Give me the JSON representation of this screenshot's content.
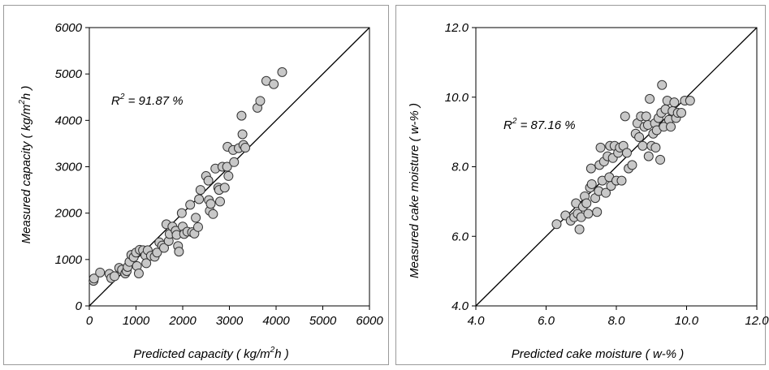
{
  "chart_data": [
    {
      "type": "scatter",
      "xlabel": "Predicted capacity ( kg/m",
      "xlabel_sup": "2",
      "xlabel_tail": "h )",
      "ylabel": "Measured capacity ( kg/m",
      "ylabel_sup": "2",
      "ylabel_tail": "h )",
      "xlim": [
        0,
        6000
      ],
      "ylim": [
        0,
        6000
      ],
      "xticks": [
        "0",
        "1000",
        "2000",
        "3000",
        "4000",
        "5000",
        "6000"
      ],
      "yticks": [
        "0",
        "1000",
        "2000",
        "3000",
        "4000",
        "5000",
        "6000"
      ],
      "grid": false,
      "annotation": {
        "prefix": "R",
        "sup": "2",
        "text": " = 91.87 %"
      },
      "reference_line": [
        [
          0,
          0
        ],
        [
          6000,
          6000
        ]
      ],
      "marker_color": "#c8c8c8",
      "points": [
        [
          90,
          540
        ],
        [
          100,
          590
        ],
        [
          230,
          720
        ],
        [
          430,
          690
        ],
        [
          470,
          600
        ],
        [
          540,
          640
        ],
        [
          640,
          820
        ],
        [
          700,
          780
        ],
        [
          770,
          700
        ],
        [
          800,
          750
        ],
        [
          820,
          840
        ],
        [
          860,
          950
        ],
        [
          900,
          1100
        ],
        [
          950,
          1050
        ],
        [
          1000,
          1150
        ],
        [
          1020,
          860
        ],
        [
          1060,
          700
        ],
        [
          1080,
          1210
        ],
        [
          1150,
          1200
        ],
        [
          1200,
          1090
        ],
        [
          1220,
          920
        ],
        [
          1250,
          1200
        ],
        [
          1320,
          1080
        ],
        [
          1400,
          1060
        ],
        [
          1450,
          1150
        ],
        [
          1500,
          1370
        ],
        [
          1560,
          1300
        ],
        [
          1600,
          1250
        ],
        [
          1650,
          1760
        ],
        [
          1700,
          1400
        ],
        [
          1720,
          1550
        ],
        [
          1780,
          1710
        ],
        [
          1850,
          1620
        ],
        [
          1870,
          1530
        ],
        [
          1900,
          1290
        ],
        [
          1920,
          1170
        ],
        [
          1980,
          2000
        ],
        [
          2000,
          1710
        ],
        [
          2030,
          1550
        ],
        [
          2100,
          1600
        ],
        [
          2160,
          2180
        ],
        [
          2200,
          1590
        ],
        [
          2250,
          1560
        ],
        [
          2280,
          1900
        ],
        [
          2330,
          1700
        ],
        [
          2350,
          2300
        ],
        [
          2380,
          2500
        ],
        [
          2500,
          2800
        ],
        [
          2550,
          2700
        ],
        [
          2560,
          2280
        ],
        [
          2580,
          2050
        ],
        [
          2600,
          2200
        ],
        [
          2650,
          1980
        ],
        [
          2700,
          2960
        ],
        [
          2760,
          2550
        ],
        [
          2780,
          2500
        ],
        [
          2800,
          2250
        ],
        [
          2850,
          3000
        ],
        [
          2900,
          2550
        ],
        [
          2950,
          3000
        ],
        [
          2960,
          3430
        ],
        [
          2980,
          2800
        ],
        [
          3080,
          3360
        ],
        [
          3100,
          3100
        ],
        [
          3200,
          3400
        ],
        [
          3260,
          4100
        ],
        [
          3280,
          3700
        ],
        [
          3300,
          3470
        ],
        [
          3340,
          3410
        ],
        [
          3600,
          4270
        ],
        [
          3660,
          4420
        ],
        [
          3790,
          4850
        ],
        [
          3950,
          4780
        ],
        [
          4130,
          5040
        ]
      ]
    },
    {
      "type": "scatter",
      "xlabel": "Predicted cake moisture ( w-% )",
      "ylabel": "Measured cake moisture ( w-% )",
      "xlim": [
        4.0,
        12.0
      ],
      "ylim": [
        4.0,
        12.0
      ],
      "xticks": [
        "4.0",
        "6.0",
        "8.0",
        "10.0",
        "12.0"
      ],
      "yticks": [
        "4.0",
        "6.0",
        "8.0",
        "10.0",
        "12.0"
      ],
      "grid": false,
      "annotation": {
        "prefix": "R",
        "sup": "2",
        "text": " = 87.16 %"
      },
      "reference_line": [
        [
          4.0,
          4.0
        ],
        [
          12.0,
          12.0
        ]
      ],
      "marker_color": "#c8c8c8",
      "points": [
        [
          6.3,
          6.35
        ],
        [
          6.55,
          6.6
        ],
        [
          6.7,
          6.45
        ],
        [
          6.8,
          6.55
        ],
        [
          6.85,
          6.95
        ],
        [
          6.9,
          6.65
        ],
        [
          6.95,
          6.2
        ],
        [
          7.0,
          6.55
        ],
        [
          7.05,
          6.85
        ],
        [
          7.1,
          7.15
        ],
        [
          7.15,
          6.95
        ],
        [
          7.2,
          6.65
        ],
        [
          7.25,
          7.4
        ],
        [
          7.28,
          7.95
        ],
        [
          7.3,
          7.5
        ],
        [
          7.4,
          7.1
        ],
        [
          7.45,
          6.7
        ],
        [
          7.5,
          7.3
        ],
        [
          7.52,
          8.05
        ],
        [
          7.55,
          8.55
        ],
        [
          7.6,
          7.6
        ],
        [
          7.65,
          8.15
        ],
        [
          7.7,
          7.25
        ],
        [
          7.75,
          8.3
        ],
        [
          7.8,
          7.7
        ],
        [
          7.82,
          8.6
        ],
        [
          7.85,
          7.45
        ],
        [
          7.9,
          8.25
        ],
        [
          7.95,
          8.6
        ],
        [
          8.0,
          7.6
        ],
        [
          8.05,
          8.4
        ],
        [
          8.1,
          8.55
        ],
        [
          8.15,
          7.6
        ],
        [
          8.2,
          8.6
        ],
        [
          8.25,
          9.45
        ],
        [
          8.3,
          8.4
        ],
        [
          8.35,
          7.95
        ],
        [
          8.45,
          8.05
        ],
        [
          8.55,
          8.95
        ],
        [
          8.6,
          9.25
        ],
        [
          8.65,
          8.85
        ],
        [
          8.7,
          9.45
        ],
        [
          8.75,
          8.6
        ],
        [
          8.8,
          9.15
        ],
        [
          8.85,
          9.45
        ],
        [
          8.9,
          9.2
        ],
        [
          8.92,
          8.3
        ],
        [
          8.95,
          9.95
        ],
        [
          9.0,
          8.6
        ],
        [
          9.05,
          8.95
        ],
        [
          9.1,
          9.25
        ],
        [
          9.12,
          8.55
        ],
        [
          9.15,
          9.05
        ],
        [
          9.2,
          9.4
        ],
        [
          9.25,
          8.2
        ],
        [
          9.28,
          9.55
        ],
        [
          9.3,
          10.35
        ],
        [
          9.35,
          9.15
        ],
        [
          9.4,
          9.65
        ],
        [
          9.45,
          9.9
        ],
        [
          9.5,
          9.35
        ],
        [
          9.55,
          9.15
        ],
        [
          9.6,
          9.6
        ],
        [
          9.65,
          9.85
        ],
        [
          9.7,
          9.4
        ],
        [
          9.75,
          9.55
        ],
        [
          9.85,
          9.55
        ],
        [
          9.95,
          9.9
        ],
        [
          10.1,
          9.9
        ]
      ]
    }
  ]
}
